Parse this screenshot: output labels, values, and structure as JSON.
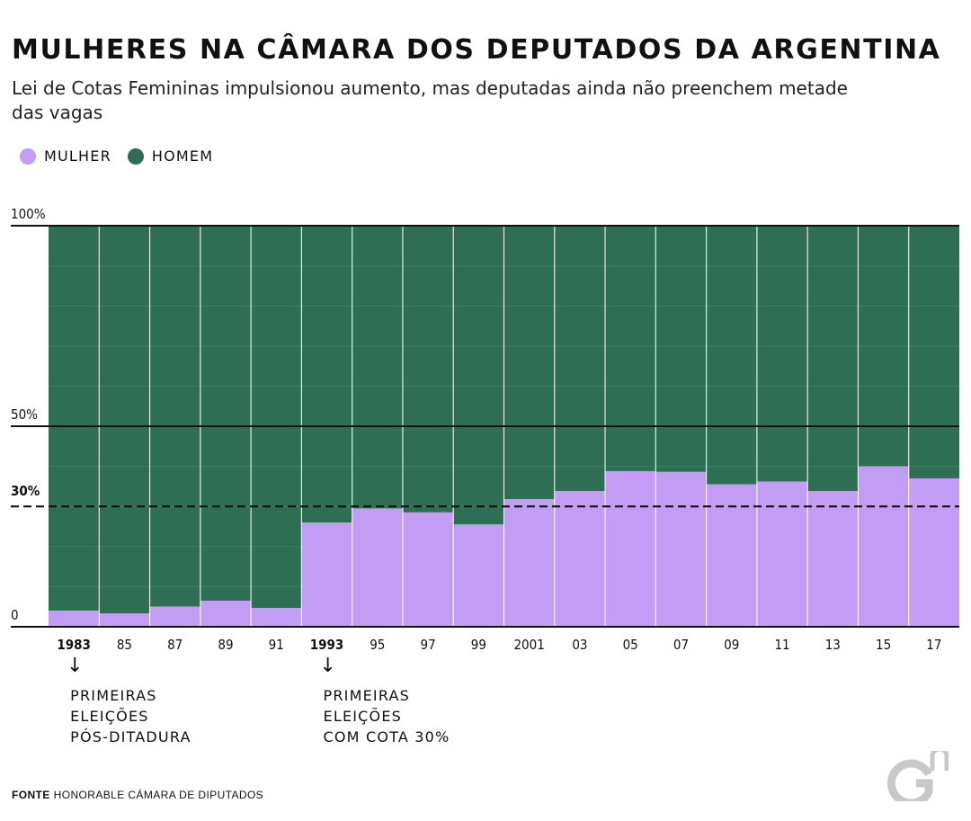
{
  "header": {
    "title": "MULHERES NA CÂMARA DOS DEPUTADOS DA ARGENTINA",
    "subtitle": "Lei de Cotas Femininas impulsionou aumento, mas deputadas ainda não preenchem metade das vagas"
  },
  "legend": [
    {
      "label": "MULHER",
      "color": "#c39cf5"
    },
    {
      "label": "HOMEM",
      "color": "#2e6e55"
    }
  ],
  "colors": {
    "mulher": "#c39cf5",
    "homem": "#2e6e55",
    "gridline": "#4a8a70"
  },
  "chart_data": {
    "type": "bar",
    "stacked": true,
    "categories": [
      "1983",
      "85",
      "87",
      "89",
      "91",
      "1993",
      "95",
      "97",
      "99",
      "2001",
      "03",
      "05",
      "07",
      "09",
      "11",
      "13",
      "15",
      "17"
    ],
    "bold_categories": [
      "1983",
      "1993"
    ],
    "series": [
      {
        "name": "MULHER",
        "values": [
          4,
          3.3,
          5,
          6.5,
          4.7,
          26,
          29.5,
          28.5,
          25.5,
          31.8,
          33.8,
          38.8,
          38.6,
          35.5,
          36.2,
          33.8,
          40,
          37
        ]
      },
      {
        "name": "HOMEM",
        "values": [
          96,
          96.7,
          95,
          93.5,
          95.3,
          74,
          70.5,
          71.5,
          74.5,
          68.2,
          66.2,
          61.2,
          61.4,
          64.5,
          63.8,
          66.2,
          60,
          63
        ]
      }
    ],
    "ylim": [
      0,
      100
    ],
    "y_ticks": [
      {
        "value": 0,
        "label": "0"
      },
      {
        "value": 50,
        "label": "50%"
      },
      {
        "value": 100,
        "label": "100%"
      }
    ],
    "reference_line": {
      "value": 30,
      "label": "30%",
      "style": "dashed"
    }
  },
  "annotations": [
    {
      "category": "1983",
      "arrow": "↓",
      "lines": [
        "PRIMEIRAS",
        "ELEIÇÕES",
        "PÓS-DITADURA"
      ]
    },
    {
      "category": "1993",
      "arrow": "↓",
      "lines": [
        "PRIMEIRAS",
        "ELEIÇÕES",
        "COM COTA 30%"
      ]
    }
  ],
  "source": {
    "label": "FONTE",
    "text": "HONORABLE CÁMARA DE DIPUTADOS"
  },
  "logo": {
    "icon": "gn-logo-icon"
  }
}
